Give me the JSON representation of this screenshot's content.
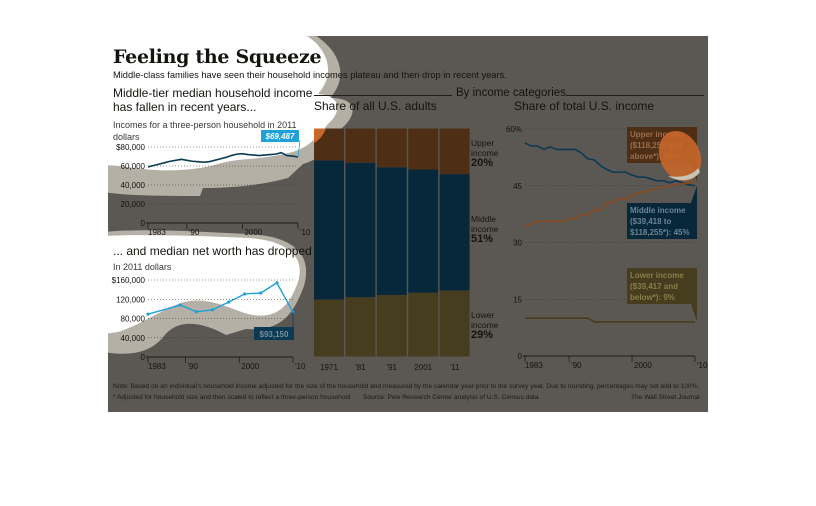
{
  "header": {
    "title": "Feeling the Squeeze",
    "dek": "Middle-class families have seen their household incomes plateau and then drop in recent years.",
    "section_label": "By income categories"
  },
  "colors": {
    "panel_dim": "#5b5853",
    "upper": "#4e2f16",
    "upper_bright": "#c8672a",
    "middle": "#06283a",
    "lower": "#463c1e",
    "line_income": "#0b3a55",
    "line_highlight": "#1ea0d8",
    "spotlight": "#ffffff",
    "halo": "#b8b3a8"
  },
  "footer": {
    "note": "Note: Based on an individual's household income adjusted for the size of the household and measured by the calendar year prior to the survey year. Due to rounding, percentages may not add to 100%.",
    "asterisk": "* Adjusted for household size and then scaled to reflect a three-person household",
    "source": "Source: Pew Research Center analysis of U.S. Census data",
    "credit": "The Wall Street Journal"
  },
  "chart_data": [
    {
      "id": "household_income",
      "type": "line",
      "title": "Middle-tier median household income has fallen in recent years...",
      "subtitle": "Incomes for a three-person household in 2011 dollars",
      "xlabel": "",
      "ylabel": "",
      "xlim": [
        1983,
        2010
      ],
      "ylim": [
        0,
        80000
      ],
      "yticks": [
        0,
        20000,
        40000,
        60000,
        80000
      ],
      "ytick_labels": [
        "0",
        "20,000",
        "40,000",
        "60,000",
        "$80,000"
      ],
      "xticks": [
        1983,
        1990,
        2000,
        2010
      ],
      "xtick_labels": [
        "1983",
        "'90",
        "2000",
        "'10"
      ],
      "grid": true,
      "series": [
        {
          "name": "Median household income",
          "x": [
            1983,
            1984,
            1985,
            1986,
            1987,
            1988,
            1989,
            1990,
            1991,
            1992,
            1993,
            1994,
            1995,
            1996,
            1997,
            1998,
            1999,
            2000,
            2001,
            2002,
            2003,
            2004,
            2005,
            2006,
            2007,
            2008,
            2009,
            2010
          ],
          "y": [
            59000,
            60500,
            62000,
            63500,
            65000,
            66000,
            67000,
            66000,
            65000,
            64500,
            64000,
            64500,
            66000,
            67500,
            69000,
            71000,
            72500,
            73000,
            72000,
            71500,
            71000,
            71500,
            72000,
            72500,
            74000,
            71000,
            70500,
            69487
          ]
        }
      ],
      "annotations": [
        {
          "text": "$69,487",
          "x": 2010
        }
      ]
    },
    {
      "id": "net_worth",
      "type": "line",
      "title": "... and median net worth has dropped",
      "subtitle": "In 2011 dollars",
      "xlabel": "",
      "ylabel": "",
      "xlim": [
        1983,
        2010
      ],
      "ylim": [
        0,
        160000
      ],
      "yticks": [
        0,
        40000,
        80000,
        120000,
        160000
      ],
      "ytick_labels": [
        "0",
        "40,000",
        "80,000",
        "120,000",
        "$160,000"
      ],
      "xticks": [
        1983,
        1990,
        2000,
        2010
      ],
      "xtick_labels": [
        "1983",
        "'90",
        "2000",
        "'10"
      ],
      "grid": true,
      "series": [
        {
          "name": "Median net worth",
          "x": [
            1983,
            1989,
            1992,
            1995,
            1998,
            2001,
            2004,
            2007,
            2010
          ],
          "y": [
            89000,
            108000,
            94000,
            98000,
            114000,
            131000,
            133000,
            154000,
            93150
          ]
        }
      ],
      "annotations": [
        {
          "text": "$93,150",
          "x": 2010
        }
      ]
    },
    {
      "id": "share_adults",
      "type": "bar",
      "stacked": true,
      "title": "Share of all U.S. adults",
      "categories": [
        "1971",
        "'81",
        "'91",
        "2001",
        "'11"
      ],
      "ylim": [
        0,
        100
      ],
      "series": [
        {
          "name": "Lower income",
          "values": [
            25,
            26,
            27,
            28,
            29
          ]
        },
        {
          "name": "Middle income",
          "values": [
            61,
            59,
            56,
            54,
            51
          ]
        },
        {
          "name": "Upper income",
          "values": [
            14,
            15,
            17,
            18,
            20
          ]
        }
      ],
      "legend": [
        {
          "line1": "Upper",
          "line2": "income",
          "pct": "20%"
        },
        {
          "line1": "Middle",
          "line2": "income",
          "pct": "51%"
        },
        {
          "line1": "Lower",
          "line2": "income",
          "pct": "29%"
        }
      ],
      "legend_position": "right"
    },
    {
      "id": "share_income",
      "type": "line",
      "title": "Share of total U.S. income",
      "xlim": [
        1983,
        2010
      ],
      "ylim": [
        0,
        60
      ],
      "yticks": [
        0,
        15,
        30,
        45,
        60
      ],
      "ytick_labels": [
        "0",
        "15",
        "30",
        "45",
        "60%"
      ],
      "xticks": [
        1983,
        1990,
        2000,
        2010
      ],
      "xtick_labels": [
        "1983",
        "'90",
        "2000",
        "'10"
      ],
      "grid": true,
      "series": [
        {
          "name": "Middle income",
          "x": [
            1983,
            1984,
            1985,
            1986,
            1987,
            1988,
            1989,
            1990,
            1991,
            1992,
            1993,
            1994,
            1995,
            1996,
            1997,
            1998,
            1999,
            2000,
            2001,
            2002,
            2003,
            2004,
            2005,
            2006,
            2007,
            2008,
            2009,
            2010
          ],
          "y": [
            56.3,
            55.5,
            55.5,
            54.6,
            55.3,
            54.6,
            54.6,
            54.6,
            54.6,
            53.6,
            52.1,
            51.8,
            50.3,
            49.3,
            48.6,
            48.6,
            48.6,
            47.8,
            47.3,
            47.3,
            46.8,
            46.3,
            46.3,
            45.8,
            46.3,
            45.8,
            45.3,
            45
          ]
        },
        {
          "name": "Upper income",
          "x": [
            1983,
            1984,
            1985,
            1986,
            1987,
            1988,
            1989,
            1990,
            1991,
            1992,
            1993,
            1994,
            1995,
            1996,
            1997,
            1998,
            1999,
            2000,
            2001,
            2002,
            2003,
            2004,
            2005,
            2006,
            2007,
            2008,
            2009,
            2010
          ],
          "y": [
            34.2,
            34.9,
            35.6,
            35.6,
            35.6,
            35.6,
            35.6,
            36.3,
            36.3,
            37.4,
            37.4,
            38.6,
            38.6,
            40.6,
            40.6,
            41.6,
            41.6,
            42.2,
            43.3,
            43.3,
            43.8,
            44.3,
            44.6,
            45,
            45.4,
            45.5,
            45.8,
            46
          ]
        },
        {
          "name": "Lower income",
          "x": [
            1983,
            1990,
            1993,
            1994,
            2010
          ],
          "y": [
            10,
            10,
            10,
            9,
            9
          ]
        }
      ],
      "annotations": [
        {
          "series": "Upper income",
          "lines": [
            "Upper income",
            "($118,256 and",
            "above*): 46%"
          ]
        },
        {
          "series": "Middle income",
          "lines": [
            "Middle income",
            "($39,418 to",
            "$118,255*): 45%"
          ]
        },
        {
          "series": "Lower income",
          "lines": [
            "Lower income",
            "($39,417 and",
            "below*): 9%"
          ]
        }
      ]
    }
  ]
}
